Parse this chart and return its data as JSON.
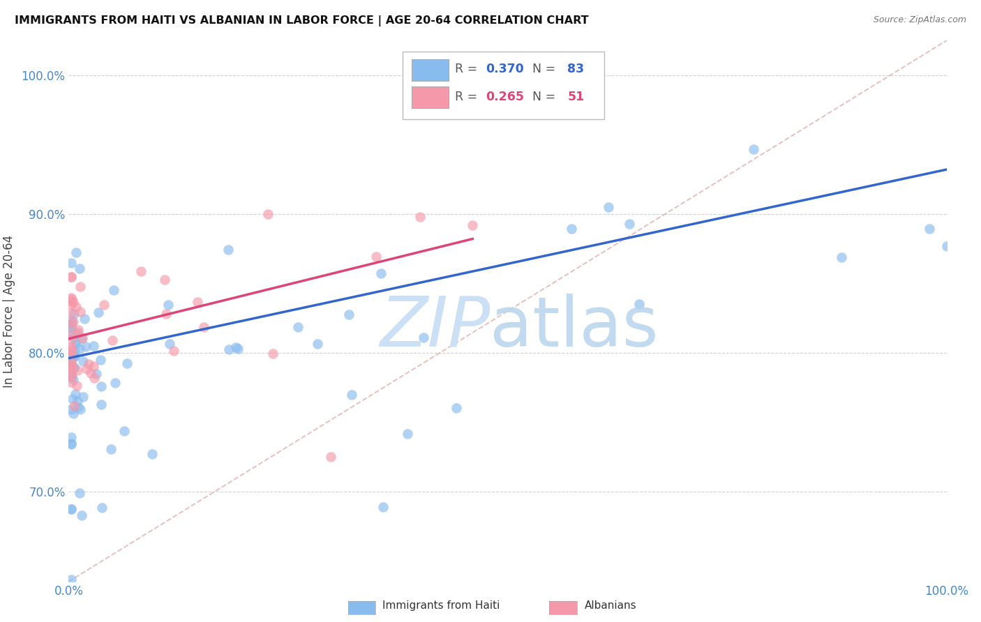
{
  "title": "IMMIGRANTS FROM HAITI VS ALBANIAN IN LABOR FORCE | AGE 20-64 CORRELATION CHART",
  "source": "Source: ZipAtlas.com",
  "ylabel": "In Labor Force | Age 20-64",
  "xlim": [
    0.0,
    1.0
  ],
  "ylim": [
    0.635,
    1.025
  ],
  "y_tick_positions": [
    0.7,
    0.8,
    0.9,
    1.0
  ],
  "haiti_color": "#88bbee",
  "albanian_color": "#f599aa",
  "haiti_line_color": "#3366cc",
  "albanian_line_color": "#dd4477",
  "diagonal_color": "#ddaaaa",
  "haiti_R": 0.37,
  "haiti_N": 83,
  "albanian_R": 0.265,
  "albanian_N": 51,
  "background_color": "#ffffff",
  "grid_color": "#cccccc",
  "tick_label_color": "#4488cc",
  "haiti_line_x": [
    0.0,
    1.0
  ],
  "haiti_line_y": [
    0.796,
    0.932
  ],
  "albanian_line_x": [
    0.0,
    0.46
  ],
  "albanian_line_y": [
    0.81,
    0.882
  ],
  "diagonal_line_x": [
    0.0,
    1.0
  ],
  "diagonal_line_y": [
    0.635,
    1.025
  ]
}
